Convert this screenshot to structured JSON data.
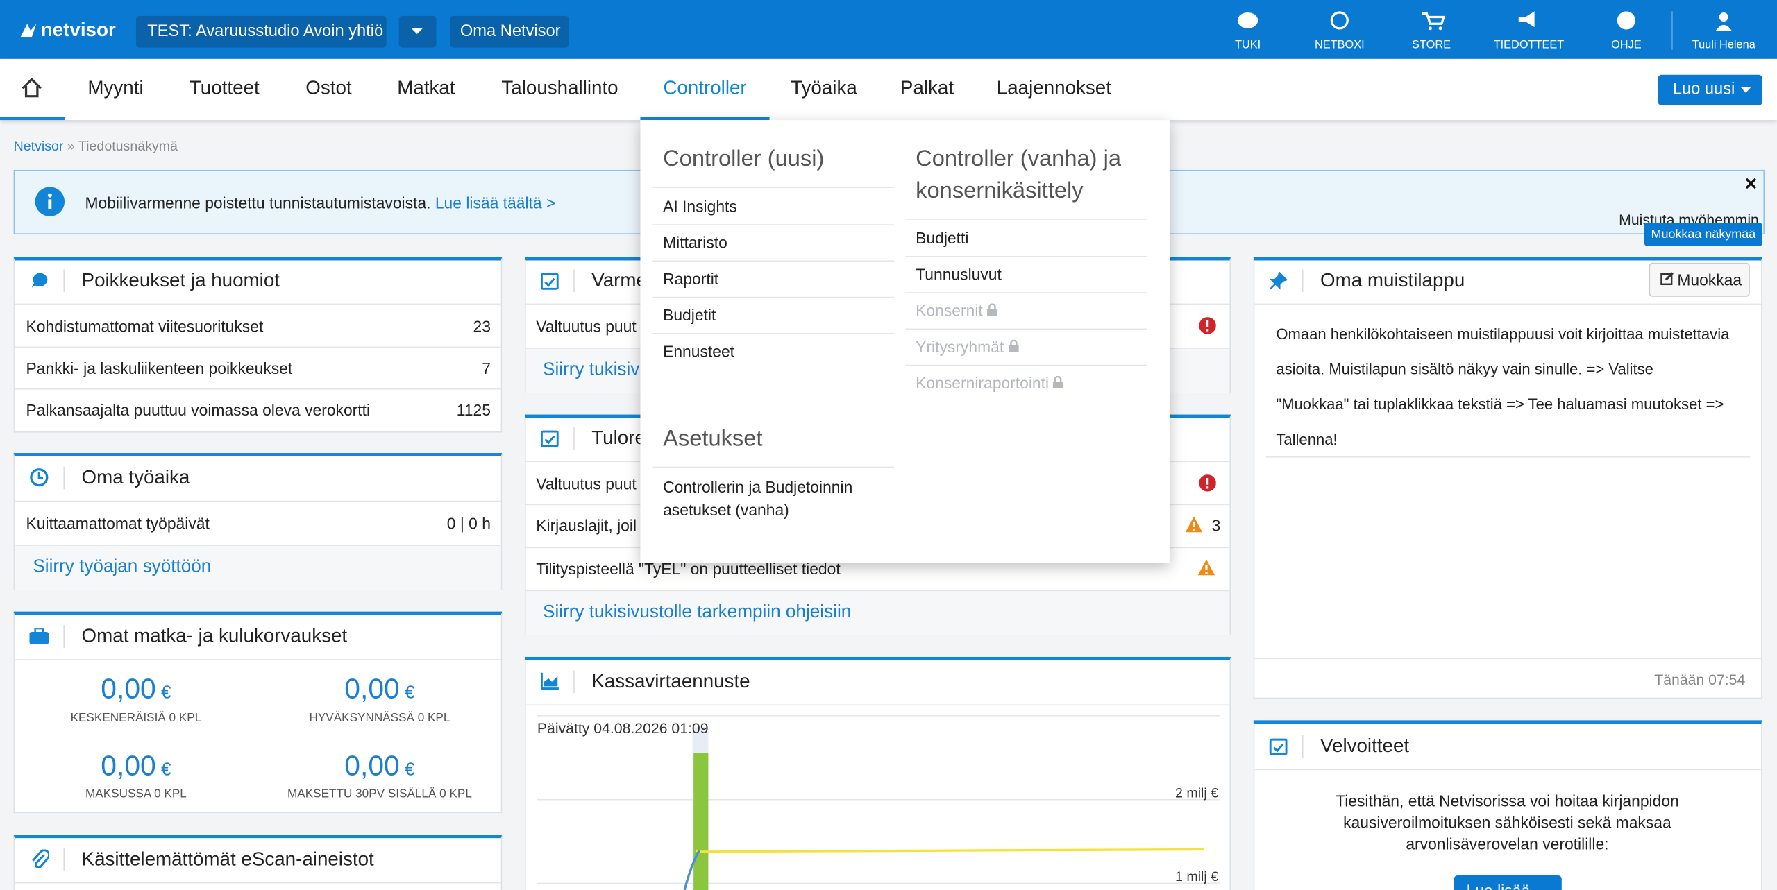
{
  "topbar": {
    "logo": "netvisor",
    "company": "TEST: Avaruusstudio Avoin yhtiö",
    "oma": "Oma Netvisor",
    "icons": [
      "TUKI",
      "NETBOXI",
      "STORE",
      "TIEDOTTEET",
      "OHJE"
    ],
    "user": "Tuuli Helena"
  },
  "nav": {
    "items": [
      "Myynti",
      "Tuotteet",
      "Ostot",
      "Matkat",
      "Taloushallinto",
      "Controller",
      "Työaika",
      "Palkat",
      "Laajennokset"
    ],
    "create": "Luo uusi"
  },
  "breadcrumb": {
    "root": "Netvisor",
    "separator": "»",
    "current": "Tiedotusnäkymä"
  },
  "notice": {
    "text": "Mobiilivarmenne poistettu tunnistautumistavoista.",
    "link": "Lue lisää täältä >",
    "remind": "Muistuta myöhemmin"
  },
  "edit_view": "Muokkaa näkymää",
  "exceptions": {
    "title": "Poikkeukset ja huomiot",
    "rows": [
      [
        "Kohdistumattomat viitesuoritukset",
        23
      ],
      [
        "Pankki- ja laskuliikenteen poikkeukset",
        7
      ],
      [
        "Palkansaajalta puuttuu voimassa oleva verokortti",
        1125
      ]
    ]
  },
  "worktime": {
    "title": "Oma työaika",
    "rows": [
      [
        "Kuittaamattomat työpäivät",
        "0 | 0 h"
      ]
    ],
    "link": "Siirry työajan syöttöön"
  },
  "travel": {
    "title": "Omat matka- ja kulukorvaukset",
    "items": [
      {
        "amount": "0,00",
        "currency": "€",
        "label": "KESKENERÄISIÄ 0 KPL"
      },
      {
        "amount": "0,00",
        "currency": "€",
        "label": "HYVÄKSYNNÄSSÄ 0 KPL"
      },
      {
        "amount": "0,00",
        "currency": "€",
        "label": "MAKSUSSA 0 KPL"
      },
      {
        "amount": "0,00",
        "currency": "€",
        "label": "MAKSETTU 30PV SISÄLLÄ 0 KPL"
      }
    ]
  },
  "escan": {
    "title": "Käsittelemättömät eScan-aineistot"
  },
  "varme": {
    "title": "Varme",
    "rows": [
      "Valtuutus puut"
    ],
    "link": "Siirry tukisiv"
  },
  "tulore": {
    "title": "Tulore",
    "rows": [
      "Valtuutus puut",
      "Kirjauslajit, joil",
      "Tilityspisteellä \"TyEL\" on puutteelliset tiedot"
    ],
    "count": 3,
    "link": "Siirry tukisivustolle tarkempiin ohjeisiin"
  },
  "cashflow": {
    "title": "Kassavirtaennuste",
    "updated": "Päivätty 04.08.2026 01:09",
    "axis": [
      "2 milj €",
      "1 milj €"
    ]
  },
  "memo": {
    "title": "Oma muistilappu",
    "edit": "Muokkaa",
    "lines": [
      "Omaan henkilökohtaiseen muistilappuusi voit kirjoittaa muistettavia",
      "asioita. Muistilapun sisältö näkyy vain sinulle.  => Valitse",
      "\"Muokkaa\" tai tuplaklikkaa tekstiä  => Tee haluamasi muutokset  =>",
      "Tallenna!"
    ],
    "time": "Tänään 07:54"
  },
  "obligations": {
    "title": "Velvoitteet",
    "lines": [
      "Tiesithän, että Netvisorissa voi hoitaa kirjanpidon",
      "kausiveroilmoituksen sähköisesti sekä maksaa",
      "arvonlisäverovelan verotilille:"
    ],
    "button": "Lue lisää"
  },
  "dropdown": {
    "new": {
      "title": "Controller (uusi)",
      "items": [
        "AI Insights",
        "Mittaristo",
        "Raportit",
        "Budjetit",
        "Ennusteet"
      ]
    },
    "settings": {
      "title": "Asetukset",
      "items": [
        "Controllerin ja Budjetoinnin",
        "asetukset (vanha)"
      ]
    },
    "old": {
      "title": [
        "Controller (vanha) ja",
        "konsernikäsittely"
      ],
      "items": [
        "Budjetti",
        "Tunnusluvut"
      ],
      "disabled": [
        "Konsernit",
        "Yritysryhmät",
        "Konserniraportointi"
      ]
    }
  }
}
